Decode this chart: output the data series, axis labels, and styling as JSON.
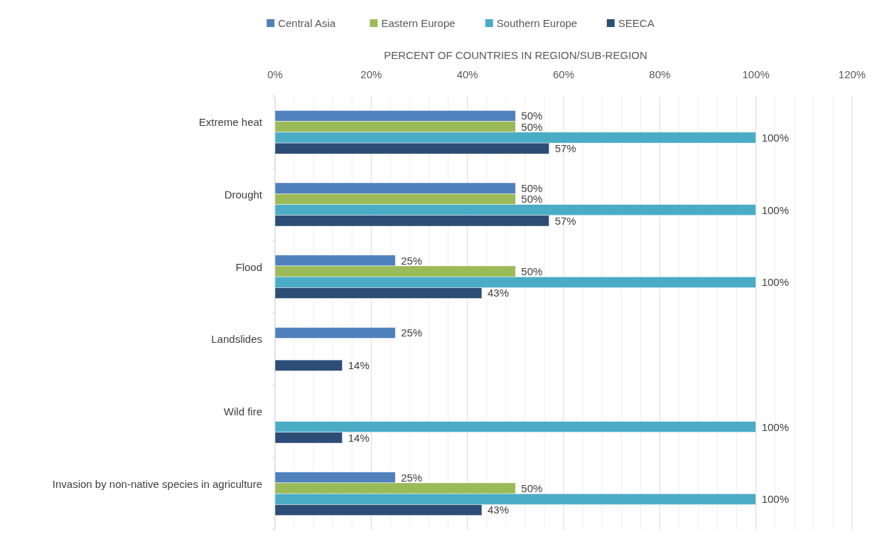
{
  "chart_data": {
    "type": "bar",
    "orientation": "horizontal",
    "xlabel": "PERCENT OF COUNTRIES IN REGION/SUB-REGION",
    "categories": [
      "Extreme heat",
      "Drought",
      "Flood",
      "Landslides",
      "Wild fire",
      "Invasion by non-native species in agriculture"
    ],
    "series": [
      {
        "name": "Central Asia",
        "color": "#4f81bd",
        "values": [
          50,
          50,
          25,
          25,
          null,
          25
        ],
        "value_labels": [
          "50%",
          "50%",
          "25%",
          "25%",
          null,
          "25%"
        ]
      },
      {
        "name": "Eastern Europe",
        "color": "#9bbb59",
        "values": [
          50,
          50,
          50,
          null,
          null,
          50
        ],
        "value_labels": [
          "50%",
          "50%",
          "50%",
          null,
          null,
          "50%"
        ]
      },
      {
        "name": "Southern Europe",
        "color": "#4bacc6",
        "values": [
          100,
          100,
          100,
          null,
          100,
          100
        ],
        "value_labels": [
          "100%",
          "100%",
          "100%",
          null,
          "100%",
          "100%"
        ]
      },
      {
        "name": "SEECA",
        "color": "#2c4d75",
        "values": [
          57,
          57,
          43,
          14,
          14,
          43
        ],
        "value_labels": [
          "57%",
          "57%",
          "43%",
          "14%",
          "14%",
          "43%"
        ]
      }
    ],
    "xlim": [
      0,
      120
    ],
    "xticks": [
      {
        "value": 0,
        "label": "0%"
      },
      {
        "value": 20,
        "label": "20%"
      },
      {
        "value": 40,
        "label": "40%"
      },
      {
        "value": 60,
        "label": "60%"
      },
      {
        "value": 80,
        "label": "80%"
      },
      {
        "value": 100,
        "label": "100%"
      },
      {
        "value": 120,
        "label": "120%"
      }
    ],
    "grid": "x",
    "legend": "top"
  }
}
